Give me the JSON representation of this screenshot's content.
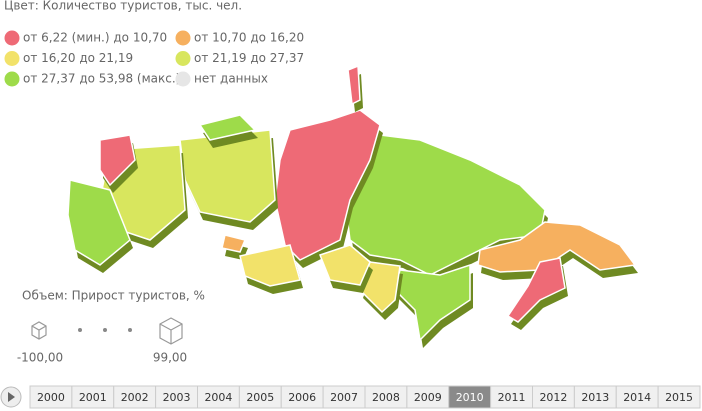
{
  "legend": {
    "title": "Цвет: Количество туристов, тыс. чел.",
    "items": [
      {
        "label": "от 6,22 (мин.) до 10,70",
        "color": "#ee6a76"
      },
      {
        "label": "от 10,70 до 16,20",
        "color": "#f6b05f"
      },
      {
        "label": "от 16,20 до 21,19",
        "color": "#f2e26a"
      },
      {
        "label": "от 21,19 до 27,37",
        "color": "#d8e65e"
      },
      {
        "label": "от 27,37 до 53,98 (макс.)",
        "color": "#9edb4a"
      },
      {
        "label": "нет данных",
        "color": "#e6e6e6"
      }
    ]
  },
  "size_legend": {
    "title": "Объем: Прирост туристов, %",
    "min_label": "-100,00",
    "max_label": "99,00"
  },
  "timeline": {
    "years": [
      "2000",
      "2001",
      "2002",
      "2003",
      "2004",
      "2005",
      "2006",
      "2007",
      "2008",
      "2009",
      "2010",
      "2011",
      "2012",
      "2013",
      "2014",
      "2015"
    ],
    "selected": "2010"
  }
}
